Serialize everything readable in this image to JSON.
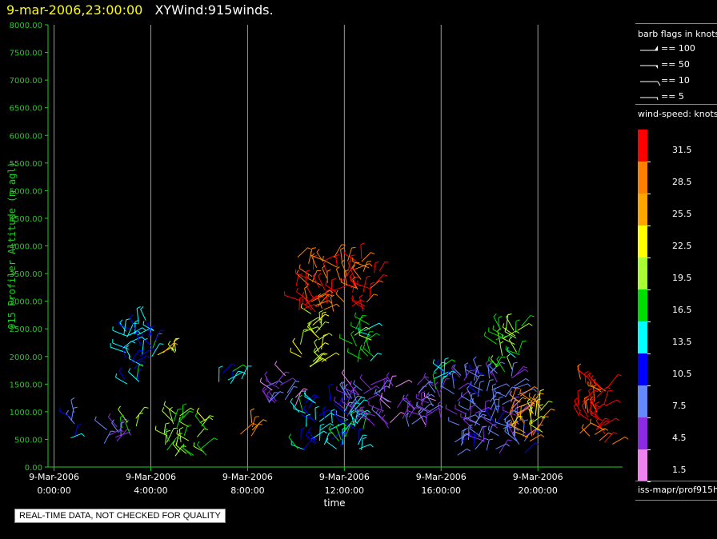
{
  "header": {
    "date": "9-mar-2006,23:00:00",
    "name": "XYWind:915winds."
  },
  "axis": {
    "ylabel": "915 Profiler Altitude (m agl)",
    "xlabel": "time",
    "y_ticks": [
      "8000.00",
      "7500.00",
      "7000.00",
      "6500.00",
      "6000.00",
      "5500.00",
      "5000.00",
      "4500.00",
      "4000.00",
      "3500.00",
      "3000.00",
      "2500.00",
      "2000.00",
      "1500.00",
      "1000.00",
      "500.00",
      "0.00"
    ],
    "x_ticks": [
      {
        "date": "9-Mar-2006",
        "time": "0:00:00"
      },
      {
        "date": "9-Mar-2006",
        "time": "4:00:00"
      },
      {
        "date": "9-Mar-2006",
        "time": "8:00:00"
      },
      {
        "date": "9-Mar-2006",
        "time": "12:00:00"
      },
      {
        "date": "9-Mar-2006",
        "time": "16:00:00"
      },
      {
        "date": "9-Mar-2006",
        "time": "20:00:00"
      }
    ]
  },
  "legend": {
    "barb_title": "barb flags in knots",
    "barbs": [
      "== 100",
      "== 50",
      "== 10",
      "== 5"
    ],
    "speed_title": "wind-speed: knots",
    "scale_labels": [
      "31.5",
      "28.5",
      "25.5",
      "22.5",
      "19.5",
      "16.5",
      "13.5",
      "10.5",
      "7.5",
      "4.5",
      "1.5"
    ],
    "scale_colors": [
      "#ff0000",
      "#ff7f00",
      "#ffa500",
      "#ffff00",
      "#aaff33",
      "#00dd00",
      "#00ffff",
      "#0000ff",
      "#6688ff",
      "#8a2be2",
      "#ee82ee"
    ],
    "source": "iss-mapr/prof915h"
  },
  "footer": "REAL-TIME DATA, NOT CHECKED FOR QUALITY",
  "chart_data": {
    "type": "scatter",
    "title": "XYWind:915winds.",
    "xlabel": "time",
    "ylabel": "915 Profiler Altitude (m agl)",
    "xlim": [
      -0.25,
      23.5
    ],
    "ylim": [
      0,
      8000
    ],
    "x_unit": "hours, 9-Mar-2006",
    "grid": "vertical at 4-hour ticks",
    "legend_position": "right",
    "clusters": [
      {
        "time_range": [
          0.6,
          1.1
        ],
        "alt_range": [
          500,
          1000
        ],
        "speed": 10
      },
      {
        "time_range": [
          2.0,
          2.8
        ],
        "alt_range": [
          400,
          900
        ],
        "speed": 7
      },
      {
        "time_range": [
          2.8,
          3.4
        ],
        "alt_range": [
          600,
          900
        ],
        "speed": 17
      },
      {
        "time_range": [
          2.8,
          4.2
        ],
        "alt_range": [
          1500,
          2700
        ],
        "speed": 13
      },
      {
        "time_range": [
          4.2,
          5.1
        ],
        "alt_range": [
          2000,
          2200
        ],
        "speed": 22
      },
      {
        "time_range": [
          4.5,
          6.3
        ],
        "alt_range": [
          200,
          1000
        ],
        "speed": 19
      },
      {
        "time_range": [
          6.8,
          7.8
        ],
        "alt_range": [
          1500,
          1800
        ],
        "speed": 13
      },
      {
        "time_range": [
          7.7,
          8.3
        ],
        "alt_range": [
          500,
          800
        ],
        "speed": 28
      },
      {
        "time_range": [
          8.7,
          10.0
        ],
        "alt_range": [
          1100,
          1700
        ],
        "speed": 5
      },
      {
        "time_range": [
          10.0,
          12.8
        ],
        "alt_range": [
          300,
          1200
        ],
        "speed": 13
      },
      {
        "time_range": [
          10.1,
          11.1
        ],
        "alt_range": [
          1800,
          2800
        ],
        "speed": 22
      },
      {
        "time_range": [
          10.0,
          13.5
        ],
        "alt_range": [
          2800,
          3800
        ],
        "speed": 31
      },
      {
        "time_range": [
          12.3,
          13.3
        ],
        "alt_range": [
          1800,
          2600
        ],
        "speed": 16
      },
      {
        "time_range": [
          12.0,
          16.0
        ],
        "alt_range": [
          700,
          1500
        ],
        "speed": 5
      },
      {
        "time_range": [
          15.5,
          16.3
        ],
        "alt_range": [
          1400,
          1900
        ],
        "speed": 13
      },
      {
        "time_range": [
          16.5,
          19.5
        ],
        "alt_range": [
          200,
          1700
        ],
        "speed": 7
      },
      {
        "time_range": [
          18.2,
          19.5
        ],
        "alt_range": [
          1700,
          2600
        ],
        "speed": 17
      },
      {
        "time_range": [
          18.8,
          20.2
        ],
        "alt_range": [
          400,
          1300
        ],
        "speed": 26
      },
      {
        "time_range": [
          19.7,
          20.3
        ],
        "alt_range": [
          600,
          1200
        ],
        "speed": 22
      },
      {
        "time_range": [
          21.6,
          23.1
        ],
        "alt_range": [
          400,
          1650
        ],
        "speed": 31
      }
    ]
  }
}
